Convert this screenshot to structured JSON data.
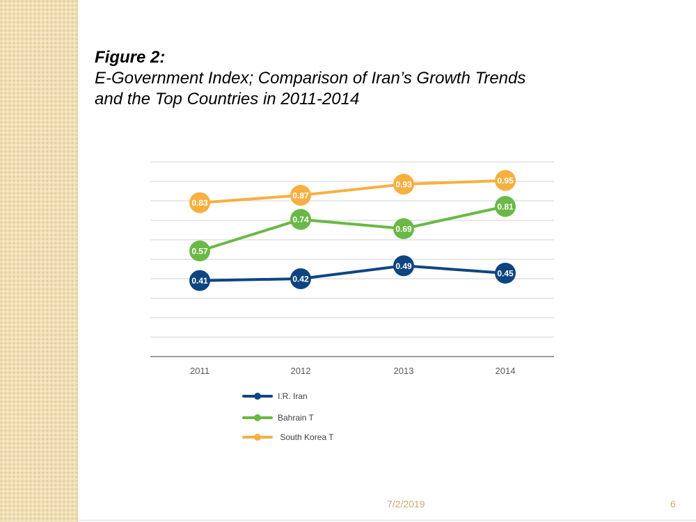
{
  "slide": {
    "figure_label": "Figure 2:",
    "title_line1": "E-Government Index; Comparison of Iran’s Growth Trends",
    "title_line2": "and the Top Countries in 2011-2014",
    "date": "7/2/2019",
    "page_number": "6"
  },
  "colors": {
    "background_strip": "#f1dfb6",
    "footer_text": "#c9a96b"
  },
  "chart_data": {
    "type": "line",
    "title": "",
    "xlabel": "",
    "ylabel": "",
    "categories": [
      "2011",
      "2012",
      "2013",
      "2014"
    ],
    "ylim": [
      0,
      1.05
    ],
    "grid": true,
    "legend_position": "bottom",
    "series": [
      {
        "name": "I.R. Iran",
        "values": [
          0.41,
          0.42,
          0.49,
          0.45
        ],
        "labels": [
          "0.41",
          "0.42",
          "0.49",
          "0.45"
        ],
        "color": "#0e4580"
      },
      {
        "name": "Bahrain T",
        "values": [
          0.57,
          0.74,
          0.69,
          0.81
        ],
        "labels": [
          "0.57",
          "0.74",
          "0.69",
          "0.81"
        ],
        "color": "#6ab845"
      },
      {
        "name": " South Korea T",
        "values": [
          0.83,
          0.87,
          0.93,
          0.95
        ],
        "labels": [
          "0.83",
          "0.87",
          "0.93",
          "0.95"
        ],
        "color": "#f7b040"
      }
    ]
  }
}
